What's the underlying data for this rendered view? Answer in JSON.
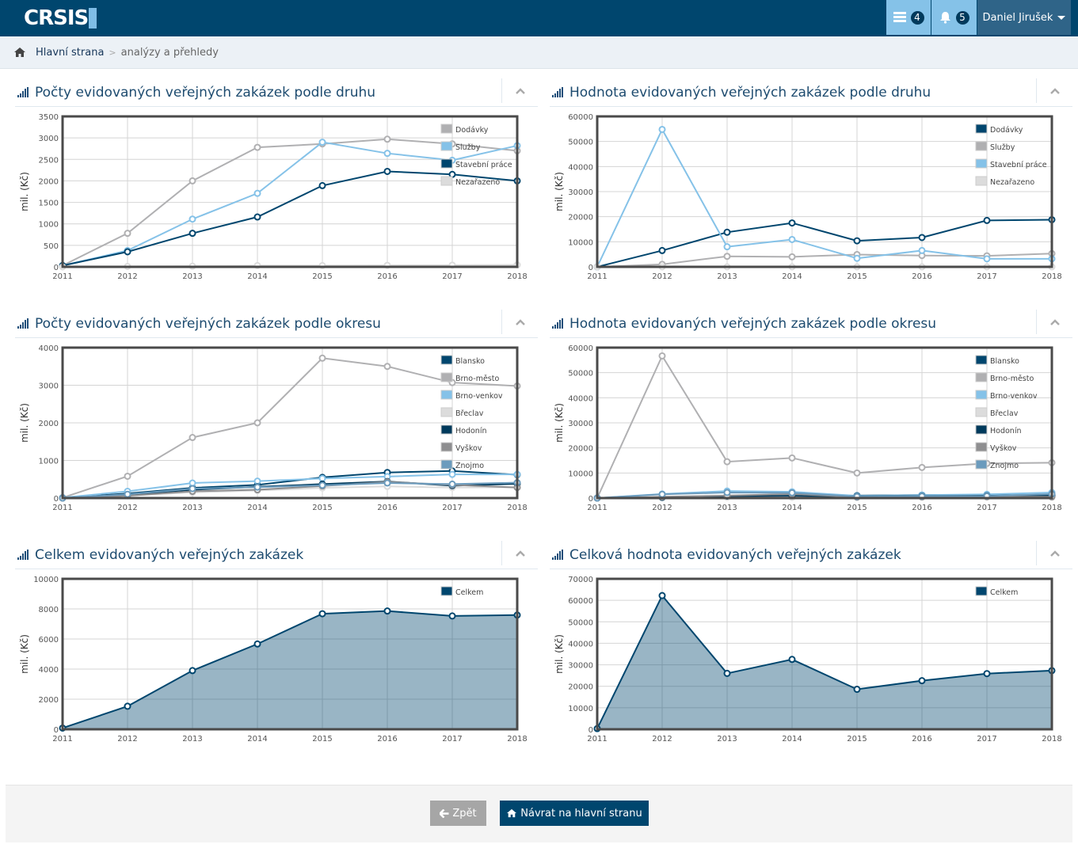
{
  "header": {
    "logo_text": "CRSIS",
    "messages_count": "4",
    "notifications_count": "5",
    "user_name": "Daniel Jirušek"
  },
  "breadcrumb": {
    "home": "Hlavní strana",
    "separator": ">",
    "current": "analýzy a přehledy"
  },
  "footer": {
    "back_label": "Zpět",
    "home_label": "Návrat na hlavní stranu"
  },
  "colors": {
    "brand": "#00466e",
    "light_blue": "#85c2e8",
    "grey": "#b0b0b0",
    "light_grey": "#dcdcdc"
  },
  "chart_data": [
    {
      "id": "c1",
      "type": "line",
      "title": "Počty evidovaných veřejných zakázek podle druhu",
      "ylabel": "mil. (Kč)",
      "x": [
        "2011",
        "2012",
        "2013",
        "2014",
        "2015",
        "2016",
        "2017",
        "2018"
      ],
      "ylim": [
        0,
        3500
      ],
      "yticks": [
        0,
        500,
        1000,
        1500,
        2000,
        2500,
        3000,
        3500
      ],
      "legend_position": "top-right",
      "series": [
        {
          "name": "Dodávky",
          "color": "#b0b0b2",
          "values": [
            30,
            780,
            2000,
            2780,
            2860,
            2970,
            2860,
            2700
          ]
        },
        {
          "name": "Služby",
          "color": "#85c2e8",
          "values": [
            30,
            380,
            1110,
            1710,
            2900,
            2640,
            2480,
            2820
          ]
        },
        {
          "name": "Stavební práce",
          "color": "#00466e",
          "values": [
            30,
            350,
            780,
            1160,
            1890,
            2220,
            2150,
            2000
          ]
        },
        {
          "name": "Nezařazeno",
          "color": "#dcdcdc",
          "values": [
            0,
            10,
            15,
            30,
            30,
            35,
            40,
            45
          ]
        }
      ]
    },
    {
      "id": "c2",
      "type": "line",
      "title": "Hodnota evidovaných veřejných zakázek podle druhu",
      "ylabel": "mil. (Kč)",
      "x": [
        "2011",
        "2012",
        "2013",
        "2014",
        "2015",
        "2016",
        "2017",
        "2018"
      ],
      "ylim": [
        0,
        60000
      ],
      "yticks": [
        0,
        10000,
        20000,
        30000,
        40000,
        50000,
        60000
      ],
      "legend_position": "top-right",
      "series": [
        {
          "name": "Dodávky",
          "color": "#00466e",
          "values": [
            0,
            6500,
            13800,
            17500,
            10400,
            11700,
            18500,
            18800
          ]
        },
        {
          "name": "Služby",
          "color": "#b0b0b2",
          "values": [
            0,
            1000,
            4200,
            4000,
            4900,
            4500,
            4400,
            5300
          ]
        },
        {
          "name": "Stavební práce",
          "color": "#85c2e8",
          "values": [
            0,
            54800,
            8000,
            10900,
            3400,
            6500,
            3200,
            3200
          ]
        },
        {
          "name": "Nezařazeno",
          "color": "#dcdcdc",
          "values": [
            0,
            0,
            0,
            0,
            0,
            0,
            0,
            0
          ]
        }
      ]
    },
    {
      "id": "c3",
      "type": "line",
      "title": "Počty evidovaných veřejných zakázek podle okresu",
      "ylabel": "mil. (Kč)",
      "x": [
        "2011",
        "2012",
        "2013",
        "2014",
        "2015",
        "2016",
        "2017",
        "2018"
      ],
      "ylim": [
        0,
        4000
      ],
      "yticks": [
        0,
        1000,
        2000,
        3000,
        4000
      ],
      "legend_position": "top-right",
      "series": [
        {
          "name": "Blansko",
          "color": "#00466e",
          "values": [
            10,
            120,
            270,
            350,
            550,
            680,
            720,
            620
          ]
        },
        {
          "name": "Brno-město",
          "color": "#b0b0b2",
          "values": [
            10,
            580,
            1610,
            2000,
            3720,
            3500,
            3070,
            2980
          ]
        },
        {
          "name": "Brno-venkov",
          "color": "#85c2e8",
          "values": [
            10,
            180,
            400,
            450,
            520,
            570,
            630,
            630
          ]
        },
        {
          "name": "Břeclav",
          "color": "#dcdcdc",
          "values": [
            0,
            70,
            150,
            200,
            270,
            310,
            280,
            290
          ]
        },
        {
          "name": "Hodonín",
          "color": "#003a5c",
          "values": [
            0,
            90,
            220,
            300,
            370,
            440,
            330,
            380
          ]
        },
        {
          "name": "Vyškov",
          "color": "#8e8e90",
          "values": [
            0,
            60,
            180,
            220,
            320,
            430,
            350,
            280
          ]
        },
        {
          "name": "Znojmo",
          "color": "#6b9bbd",
          "values": [
            0,
            100,
            250,
            290,
            340,
            400,
            370,
            410
          ]
        }
      ]
    },
    {
      "id": "c4",
      "type": "line",
      "title": "Hodnota evidovaných veřejných zakázek podle okresu",
      "ylabel": "mil. (Kč)",
      "x": [
        "2011",
        "2012",
        "2013",
        "2014",
        "2015",
        "2016",
        "2017",
        "2018"
      ],
      "ylim": [
        0,
        60000
      ],
      "yticks": [
        0,
        10000,
        20000,
        30000,
        40000,
        50000,
        60000
      ],
      "legend_position": "top-right",
      "series": [
        {
          "name": "Blansko",
          "color": "#00466e",
          "values": [
            0,
            200,
            500,
            400,
            1000,
            1200,
            1200,
            1200
          ]
        },
        {
          "name": "Brno-město",
          "color": "#b0b0b2",
          "values": [
            0,
            56700,
            14500,
            16000,
            10000,
            12200,
            13800,
            14100
          ]
        },
        {
          "name": "Brno-venkov",
          "color": "#85c2e8",
          "values": [
            0,
            1600,
            2800,
            2500,
            900,
            1200,
            1500,
            2200
          ]
        },
        {
          "name": "Břeclav",
          "color": "#dcdcdc",
          "values": [
            0,
            200,
            300,
            300,
            200,
            300,
            300,
            300
          ]
        },
        {
          "name": "Hodonín",
          "color": "#003a5c",
          "values": [
            0,
            300,
            800,
            900,
            700,
            800,
            900,
            800
          ]
        },
        {
          "name": "Vyškov",
          "color": "#8e8e90",
          "values": [
            0,
            500,
            1000,
            1600,
            400,
            500,
            600,
            500
          ]
        },
        {
          "name": "Znojmo",
          "color": "#6b9bbd",
          "values": [
            0,
            1500,
            2200,
            2100,
            600,
            700,
            800,
            1600
          ]
        }
      ]
    },
    {
      "id": "c5",
      "type": "area",
      "title": "Celkem evidovaných veřejných zakázek",
      "ylabel": "mil. (Kč)",
      "x": [
        "2011",
        "2012",
        "2013",
        "2014",
        "2015",
        "2016",
        "2017",
        "2018"
      ],
      "ylim": [
        0,
        10000
      ],
      "yticks": [
        0,
        2000,
        4000,
        6000,
        8000,
        10000
      ],
      "legend_position": "top-right",
      "series": [
        {
          "name": "Celkem",
          "color": "#00466e",
          "values": [
            80,
            1530,
            3900,
            5670,
            7680,
            7860,
            7530,
            7590
          ]
        }
      ]
    },
    {
      "id": "c6",
      "type": "area",
      "title": "Celková hodnota evidovaných veřejných zakázek",
      "ylabel": "mil. (Kč)",
      "x": [
        "2011",
        "2012",
        "2013",
        "2014",
        "2015",
        "2016",
        "2017",
        "2018"
      ],
      "ylim": [
        0,
        70000
      ],
      "yticks": [
        0,
        10000,
        20000,
        30000,
        40000,
        50000,
        60000,
        70000
      ],
      "legend_position": "top-right",
      "series": [
        {
          "name": "Celkem",
          "color": "#00466e",
          "values": [
            300,
            62200,
            26000,
            32500,
            18600,
            22600,
            25900,
            27300
          ]
        }
      ]
    }
  ]
}
